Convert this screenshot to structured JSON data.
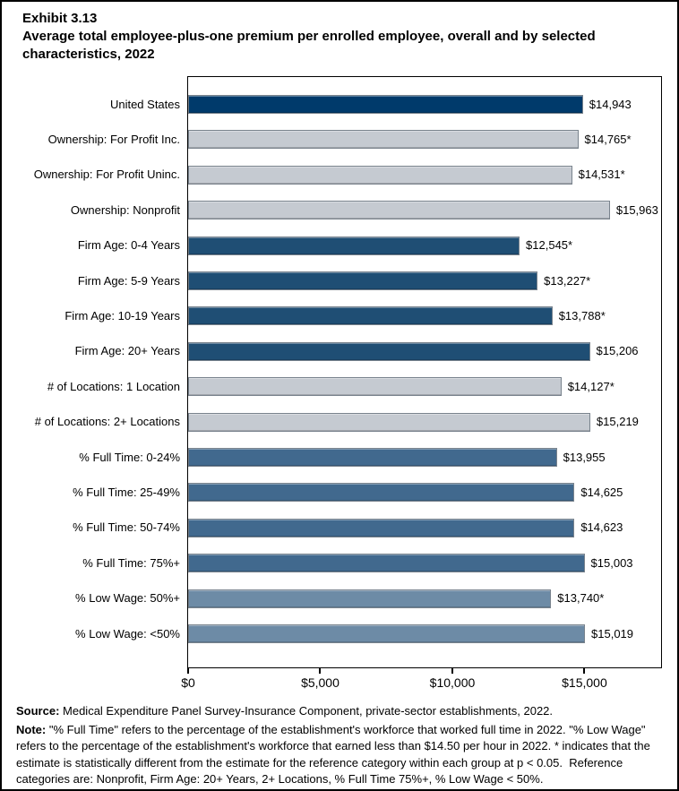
{
  "chart_data": {
    "type": "bar",
    "orientation": "horizontal",
    "exhibit_label": "Exhibit 3.13",
    "title": "Average total employee-plus-one premium per enrolled employee, overall and by selected characteristics, 2022",
    "categories": [
      "United States",
      "Ownership: For Profit Inc.",
      "Ownership: For Profit Uninc.",
      "Ownership: Nonprofit",
      "Firm Age: 0-4 Years",
      "Firm Age: 5-9 Years",
      "Firm Age: 10-19 Years",
      "Firm Age: 20+ Years",
      "# of Locations: 1 Location",
      "# of Locations: 2+ Locations",
      "% Full Time: 0-24%",
      "% Full Time: 25-49%",
      "% Full Time: 50-74%",
      "% Full Time: 75%+",
      "% Low Wage: 50%+",
      "% Low Wage: <50%"
    ],
    "values": [
      14943,
      14765,
      14531,
      15963,
      12545,
      13227,
      13788,
      15206,
      14127,
      15219,
      13955,
      14625,
      14623,
      15003,
      13740,
      15019
    ],
    "value_labels": [
      "$14,943",
      "$14,765*",
      "$14,531*",
      "$15,963",
      "$12,545*",
      "$13,227*",
      "$13,788*",
      "$15,206",
      "$14,127*",
      "$15,219",
      "$13,955",
      "$14,625",
      "$14,623",
      "$15,003",
      "$13,740*",
      "$15,019"
    ],
    "bar_colors": [
      "#003a6b",
      "#c5cad1",
      "#c5cad1",
      "#c5cad1",
      "#1f4e74",
      "#1f4e74",
      "#1f4e74",
      "#1f4e74",
      "#c5cad1",
      "#c5cad1",
      "#41698e",
      "#41698e",
      "#41698e",
      "#41698e",
      "#6d8ba6",
      "#6d8ba6"
    ],
    "palette": {
      "united_states": "#003a6b",
      "ownership_and_locations": "#c5cad1",
      "firm_age": "#1f4e74",
      "pct_full_time": "#41698e",
      "pct_low_wage": "#6d8ba6",
      "bar_border": "#79838d"
    },
    "xlabel": "",
    "ylabel": "",
    "xlim": [
      0,
      17900
    ],
    "xticks": {
      "values": [
        0,
        5000,
        10000,
        15000
      ],
      "labels": [
        "$0",
        "$5,000",
        "$10,000",
        "$15,000"
      ]
    },
    "grid": false,
    "legend": "none"
  },
  "footer": {
    "source_label": "Source:",
    "source_text": " Medical Expenditure Panel Survey-Insurance Component, private-sector establishments, 2022.",
    "note_label": "Note:",
    "note_text": " \"% Full Time\" refers to the percentage of the establishment's workforce that worked full time in 2022. \"% Low Wage\" refers to the percentage of the establishment's workforce that earned less than $14.50 per hour in 2022. * indicates that the estimate is statistically different from the estimate for the reference category within each group at p < 0.05.  Reference categories are: Nonprofit, Firm Age: 20+ Years, 2+ Locations, % Full Time 75%+, % Low Wage < 50%."
  }
}
